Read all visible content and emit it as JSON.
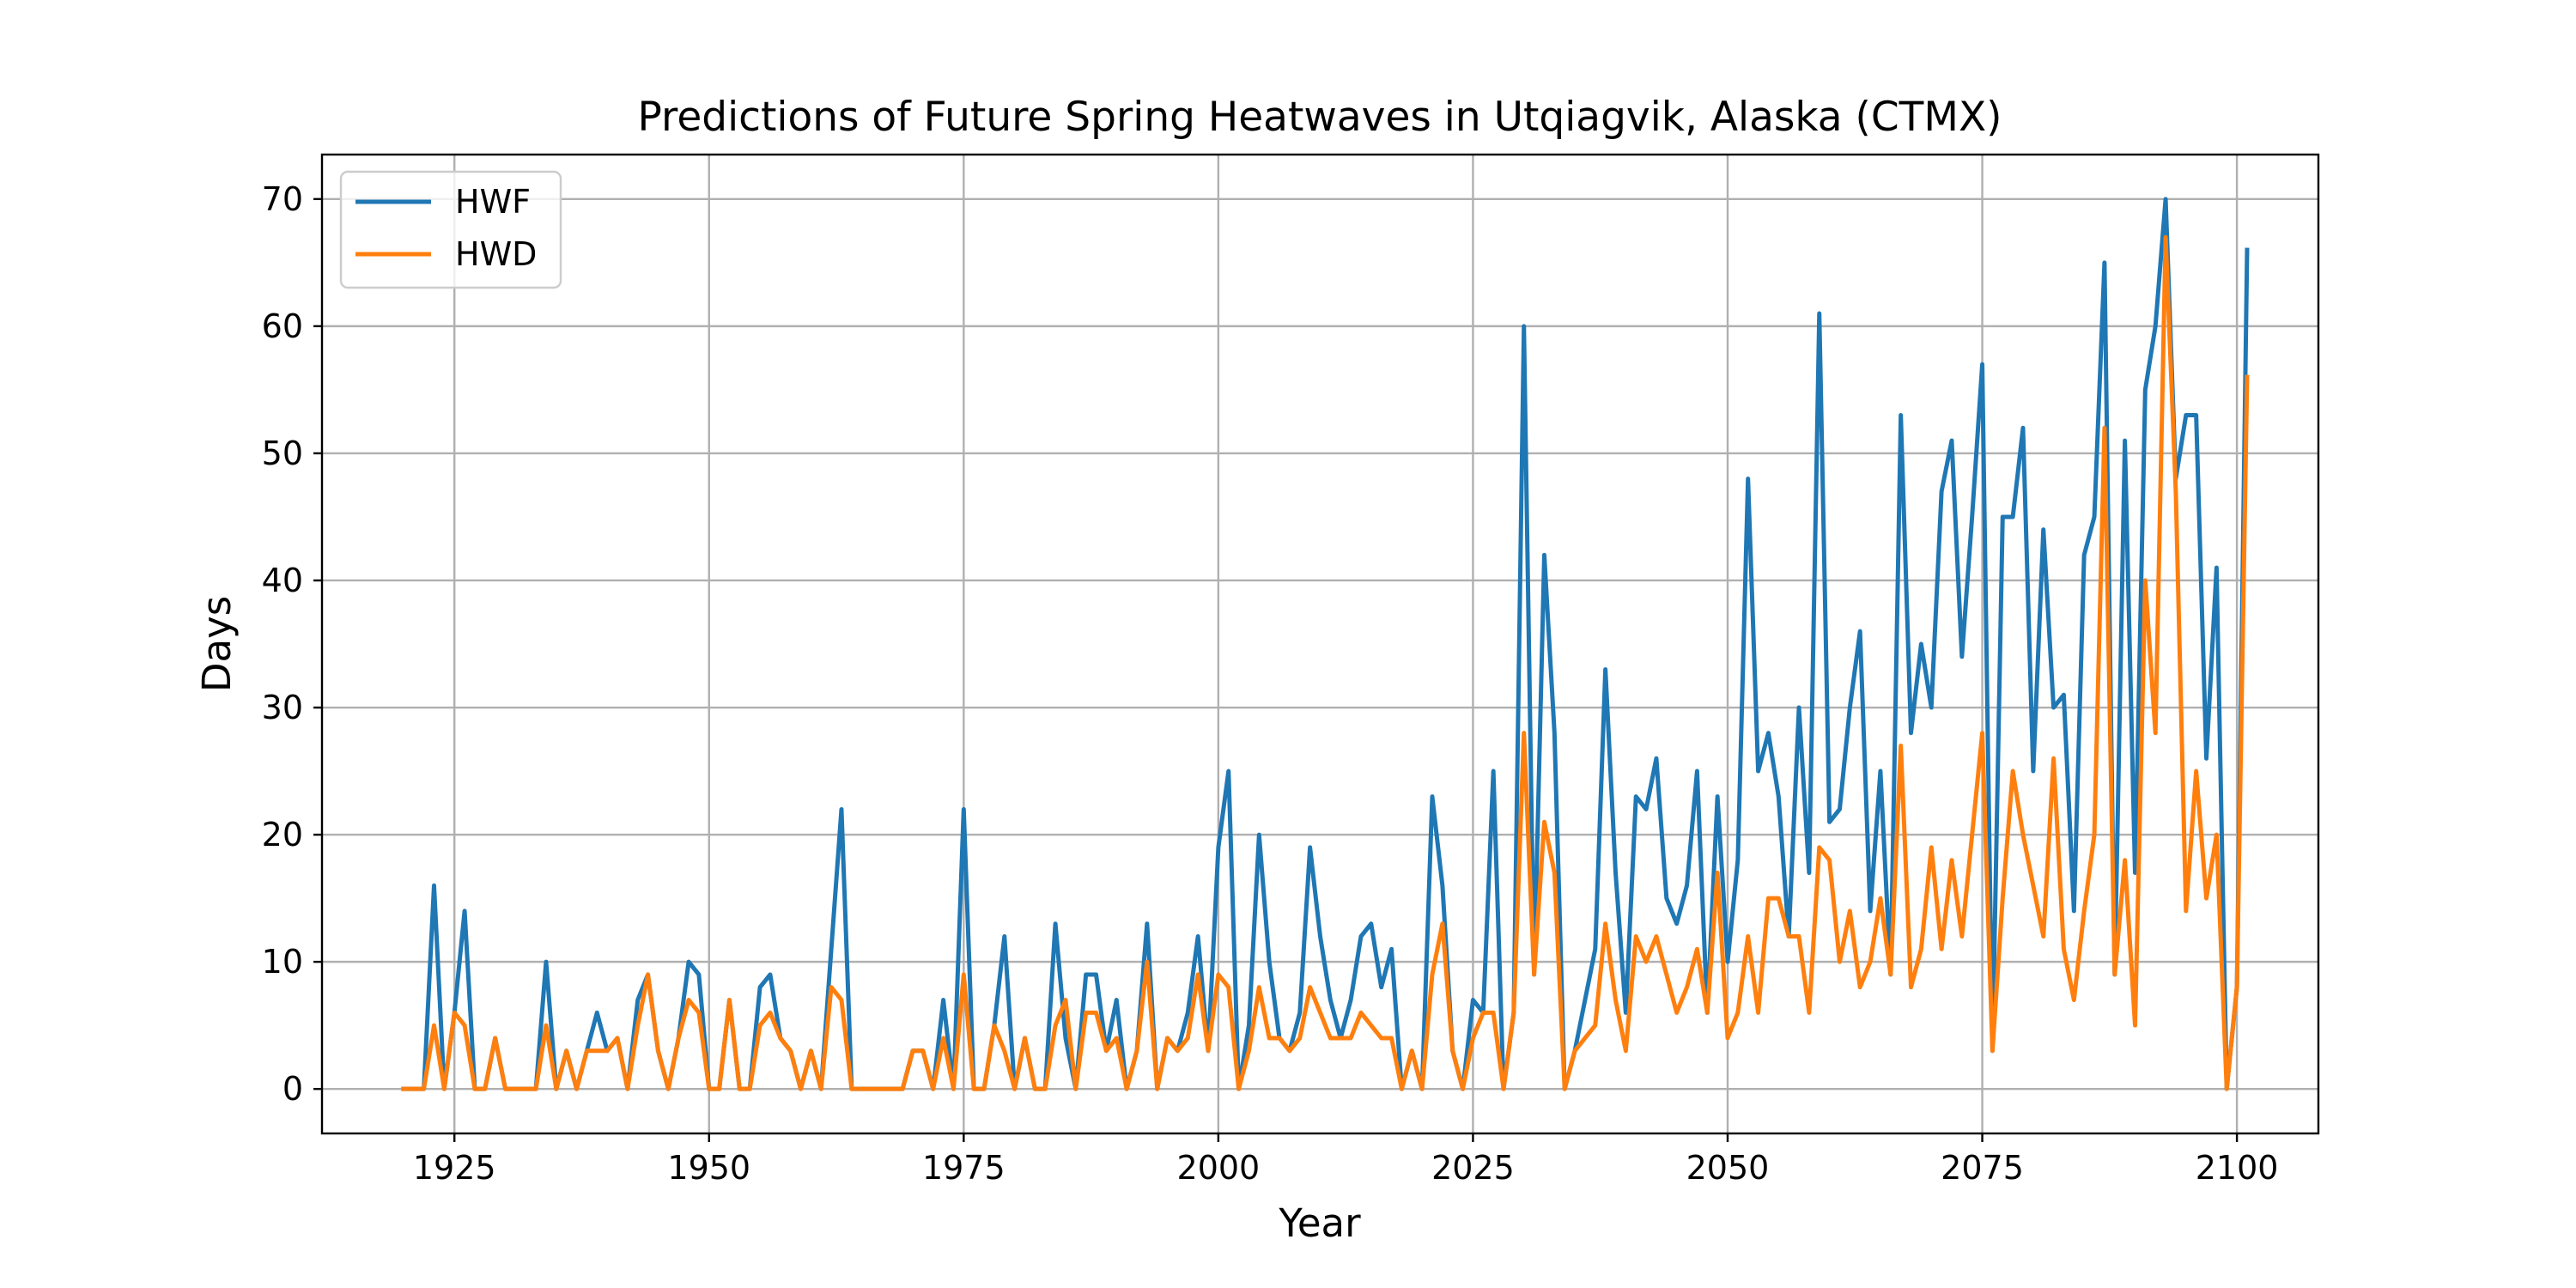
{
  "chart_data": {
    "type": "line",
    "title": "Predictions of Future Spring Heatwaves in Utqiagvik, Alaska (CTMX)",
    "xlabel": "Year",
    "ylabel": "Days",
    "xlim": [
      1912,
      2108
    ],
    "ylim": [
      -3.5,
      73.5
    ],
    "xticks": [
      1925,
      1950,
      1975,
      2000,
      2025,
      2050,
      2075,
      2100
    ],
    "yticks": [
      0,
      10,
      20,
      30,
      40,
      50,
      60,
      70
    ],
    "xtick_labels": [
      "1925",
      "1950",
      "1975",
      "2000",
      "2025",
      "2050",
      "2075",
      "2100"
    ],
    "ytick_labels": [
      "0",
      "10",
      "20",
      "30",
      "40",
      "50",
      "60",
      "70"
    ],
    "grid": true,
    "legend_position": "top-left",
    "x_start": 1920,
    "series": [
      {
        "name": "HWF",
        "color": "#1f77b4",
        "values": [
          0,
          0,
          0,
          16,
          0,
          6,
          14,
          0,
          0,
          4,
          0,
          0,
          0,
          0,
          10,
          0,
          3,
          0,
          3,
          6,
          3,
          4,
          0,
          7,
          9,
          3,
          0,
          4,
          10,
          9,
          0,
          0,
          7,
          0,
          0,
          8,
          9,
          4,
          3,
          0,
          3,
          0,
          11,
          22,
          0,
          0,
          0,
          0,
          0,
          0,
          3,
          3,
          0,
          7,
          0,
          22,
          0,
          0,
          5,
          12,
          0,
          4,
          0,
          0,
          13,
          4,
          0,
          9,
          9,
          3,
          7,
          0,
          3,
          13,
          0,
          4,
          3,
          6,
          12,
          3,
          19,
          25,
          0,
          5,
          20,
          10,
          4,
          3,
          6,
          19,
          12,
          7,
          4,
          7,
          12,
          13,
          8,
          11,
          0,
          3,
          0,
          23,
          16,
          3,
          0,
          7,
          6,
          25,
          0,
          6,
          60,
          9,
          42,
          28,
          0,
          3,
          7,
          11,
          33,
          17,
          6,
          23,
          22,
          26,
          15,
          13,
          16,
          25,
          6,
          23,
          10,
          18,
          48,
          25,
          28,
          23,
          12,
          30,
          17,
          61,
          21,
          22,
          30,
          36,
          14,
          25,
          9,
          53,
          28,
          35,
          30,
          47,
          51,
          34,
          45,
          57,
          3,
          45,
          45,
          52,
          25,
          44,
          30,
          31,
          14,
          42,
          45,
          65,
          9,
          51,
          17,
          55,
          60,
          70,
          48,
          53,
          53,
          26,
          41,
          0,
          8,
          66
        ]
      },
      {
        "name": "HWD",
        "color": "#ff7f0e",
        "values": [
          0,
          0,
          0,
          5,
          0,
          6,
          5,
          0,
          0,
          4,
          0,
          0,
          0,
          0,
          5,
          0,
          3,
          0,
          3,
          3,
          3,
          4,
          0,
          5,
          9,
          3,
          0,
          4,
          7,
          6,
          0,
          0,
          7,
          0,
          0,
          5,
          6,
          4,
          3,
          0,
          3,
          0,
          8,
          7,
          0,
          0,
          0,
          0,
          0,
          0,
          3,
          3,
          0,
          4,
          0,
          9,
          0,
          0,
          5,
          3,
          0,
          4,
          0,
          0,
          5,
          7,
          0,
          6,
          6,
          3,
          4,
          0,
          3,
          10,
          0,
          4,
          3,
          4,
          9,
          3,
          9,
          8,
          0,
          3,
          8,
          4,
          4,
          3,
          4,
          8,
          6,
          4,
          4,
          4,
          6,
          5,
          4,
          4,
          0,
          3,
          0,
          9,
          13,
          3,
          0,
          4,
          6,
          6,
          0,
          6,
          28,
          9,
          21,
          17,
          0,
          3,
          4,
          5,
          13,
          7,
          3,
          12,
          10,
          12,
          9,
          6,
          8,
          11,
          6,
          17,
          4,
          6,
          12,
          6,
          15,
          15,
          12,
          12,
          6,
          19,
          18,
          10,
          14,
          8,
          10,
          15,
          9,
          27,
          8,
          11,
          19,
          11,
          18,
          12,
          20,
          28,
          3,
          15,
          25,
          20,
          16,
          12,
          26,
          11,
          7,
          14,
          20,
          52,
          9,
          18,
          5,
          40,
          28,
          67,
          47,
          14,
          25,
          15,
          20,
          0,
          8,
          56
        ]
      }
    ]
  }
}
